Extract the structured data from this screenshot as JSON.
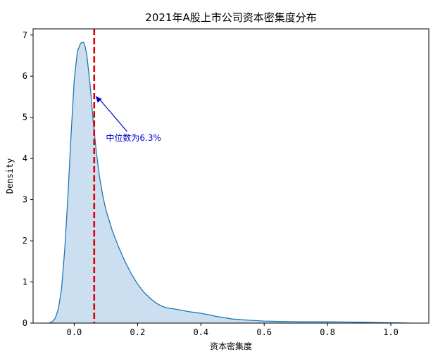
{
  "chart_data": {
    "type": "area",
    "title": "2021年A股上市公司资本密集度分布",
    "xlabel": "资本密集度",
    "ylabel": "Density",
    "xlim": [
      -0.13,
      1.12
    ],
    "ylim": [
      0,
      7.15
    ],
    "xticks": [
      0.0,
      0.2,
      0.4,
      0.6,
      0.8,
      1.0
    ],
    "xtick_labels": [
      "0.0",
      "0.2",
      "0.4",
      "0.6",
      "0.8",
      "1.0"
    ],
    "yticks": [
      0,
      1,
      2,
      3,
      4,
      5,
      6,
      7
    ],
    "ytick_labels": [
      "0",
      "1",
      "2",
      "3",
      "4",
      "5",
      "6",
      "7"
    ],
    "grid": false,
    "series": [
      {
        "fill_color": "#c6dbef",
        "line_color": "#1f77b4",
        "x": [
          -0.08,
          -0.07,
          -0.06,
          -0.05,
          -0.04,
          -0.03,
          -0.02,
          -0.01,
          0.0,
          0.01,
          0.02,
          0.025,
          0.03,
          0.035,
          0.04,
          0.05,
          0.06,
          0.07,
          0.08,
          0.09,
          0.1,
          0.12,
          0.14,
          0.16,
          0.18,
          0.2,
          0.22,
          0.24,
          0.26,
          0.28,
          0.3,
          0.32,
          0.34,
          0.36,
          0.38,
          0.4,
          0.42,
          0.45,
          0.5,
          0.55,
          0.6,
          0.65,
          0.7,
          0.75,
          0.8,
          0.85,
          0.9,
          0.95,
          1.0,
          1.03,
          1.06
        ],
        "y": [
          0.0,
          0.03,
          0.12,
          0.35,
          0.85,
          1.8,
          3.1,
          4.6,
          5.9,
          6.6,
          6.8,
          6.82,
          6.82,
          6.7,
          6.5,
          5.8,
          4.9,
          4.15,
          3.55,
          3.1,
          2.75,
          2.25,
          1.85,
          1.5,
          1.2,
          0.95,
          0.75,
          0.6,
          0.48,
          0.4,
          0.36,
          0.34,
          0.31,
          0.28,
          0.26,
          0.24,
          0.21,
          0.16,
          0.1,
          0.07,
          0.05,
          0.04,
          0.035,
          0.03,
          0.03,
          0.028,
          0.022,
          0.015,
          0.008,
          0.004,
          0.0
        ]
      }
    ],
    "median_line": {
      "x": 0.063,
      "color": "#dd0000",
      "style": "dashed"
    },
    "annotation": {
      "text": "中位数为6.3%",
      "arrow_target": [
        0.063,
        5.5
      ],
      "text_pos": [
        0.1,
        4.5
      ],
      "color": "#0000cc"
    }
  }
}
